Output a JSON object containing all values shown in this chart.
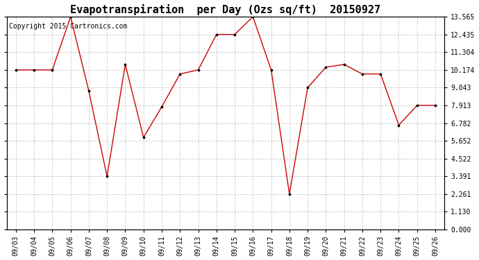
{
  "title": "Evapotranspiration  per Day (Ozs sq/ft)  20150927",
  "copyright_text": "Copyright 2015 Cartronics.com",
  "x_labels": [
    "09/03",
    "09/04",
    "09/05",
    "09/06",
    "09/07",
    "09/08",
    "09/09",
    "09/10",
    "09/11",
    "09/12",
    "09/13",
    "09/14",
    "09/15",
    "09/16",
    "09/17",
    "09/18",
    "09/19",
    "09/20",
    "09/21",
    "09/22",
    "09/23",
    "09/24",
    "09/25",
    "09/26"
  ],
  "y_values": [
    10.174,
    10.174,
    10.174,
    13.565,
    8.826,
    3.391,
    10.522,
    5.87,
    7.826,
    9.913,
    10.174,
    12.435,
    12.435,
    13.565,
    10.174,
    2.261,
    9.043,
    10.348,
    10.522,
    9.913,
    9.913,
    6.652,
    7.913,
    7.913
  ],
  "ylim": [
    0.0,
    13.565
  ],
  "yticks": [
    0.0,
    1.13,
    2.261,
    3.391,
    4.522,
    5.652,
    6.782,
    7.913,
    9.043,
    10.174,
    11.304,
    12.435,
    13.565
  ],
  "line_color": "#cc0000",
  "marker_color": "#000000",
  "background_color": "#ffffff",
  "grid_color": "#bbbbbb",
  "legend_bg": "#cc0000",
  "legend_text_color": "#ffffff",
  "title_fontsize": 11,
  "tick_fontsize": 7,
  "copyright_fontsize": 7
}
